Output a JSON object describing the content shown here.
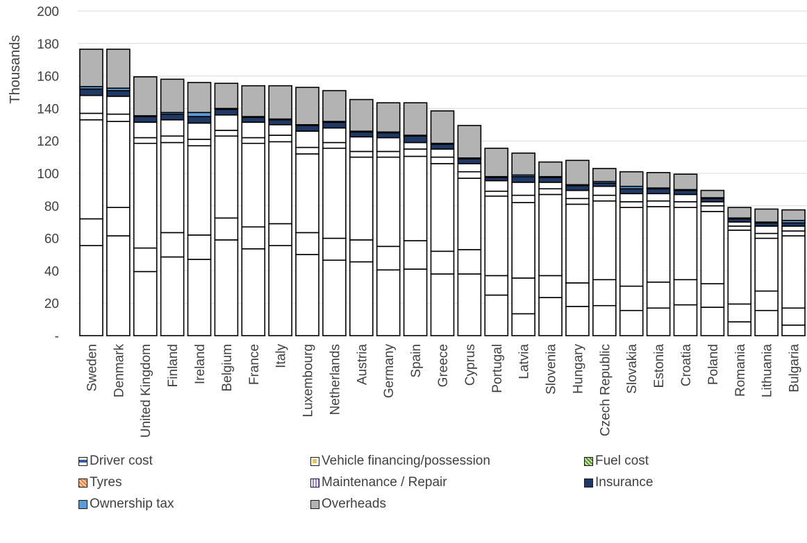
{
  "chart_data": {
    "type": "bar",
    "stacked": true,
    "ylabel": "Thousands",
    "ylim": [
      0,
      200
    ],
    "yticks": [
      {
        "value": 0,
        "label": "-"
      },
      {
        "value": 20,
        "label": "20"
      },
      {
        "value": 40,
        "label": "40"
      },
      {
        "value": 60,
        "label": "60"
      },
      {
        "value": 80,
        "label": "80"
      },
      {
        "value": 100,
        "label": "100"
      },
      {
        "value": 120,
        "label": "120"
      },
      {
        "value": 140,
        "label": "140"
      },
      {
        "value": 160,
        "label": "160"
      },
      {
        "value": 180,
        "label": "180"
      },
      {
        "value": 200,
        "label": "200"
      }
    ],
    "grid": true,
    "legend_position": "bottom",
    "categories": [
      "Sweden",
      "Denmark",
      "United Kingdom",
      "Finland",
      "Ireland",
      "Belgium",
      "France",
      "Italy",
      "Luxembourg",
      "Netherlands",
      "Austria",
      "Germany",
      "Spain",
      "Greece",
      "Cyprus",
      "Portugal",
      "Latvia",
      "Slovenia",
      "Hungary",
      "Czech Republic",
      "Slovakia",
      "Estonia",
      "Croatia",
      "Poland",
      "Romania",
      "Lithuania",
      "Bulgaria"
    ],
    "series": [
      {
        "name": "Driver cost",
        "color": "#ffffff",
        "values": [
          55.5,
          61.5,
          39.5,
          48.5,
          47,
          59,
          53.5,
          55.5,
          50,
          46.5,
          45.5,
          40.5,
          41,
          38,
          38,
          25,
          13.5,
          23.5,
          18,
          18.5,
          15.5,
          17,
          19,
          17.5,
          8.5,
          15.5,
          6.5
        ]
      },
      {
        "name": "Vehicle financing/possession",
        "color": "#ffffff",
        "values": [
          16.5,
          17.5,
          14.5,
          15,
          15,
          13.5,
          13.5,
          13.5,
          13.5,
          13.5,
          13.5,
          14.5,
          17.5,
          14,
          15,
          12,
          22,
          13.5,
          14.5,
          16,
          15,
          16,
          15.5,
          14.5,
          11,
          12,
          10.5
        ]
      },
      {
        "name": "Fuel cost",
        "color": "#ffffff",
        "values": [
          61,
          53,
          64.5,
          55.5,
          55,
          50.5,
          51.5,
          50.5,
          48.5,
          55.5,
          51,
          55,
          52,
          54,
          44,
          49,
          46.5,
          50,
          48.5,
          48.5,
          48.5,
          46.5,
          44.5,
          44.5,
          45.5,
          32.5,
          44.5
        ]
      },
      {
        "name": "Tyres",
        "color": "#ffffff",
        "values": [
          4,
          4.5,
          3.5,
          4,
          4,
          3.5,
          3.5,
          4,
          4,
          3.5,
          3.5,
          3.5,
          4.5,
          4,
          4,
          3,
          4.5,
          3.5,
          3.5,
          3.5,
          3.5,
          3.5,
          3.5,
          3.5,
          2.5,
          3,
          3
        ]
      },
      {
        "name": "Maintenance / Repair",
        "color": "#ffffff",
        "values": [
          11,
          11,
          9.5,
          10,
          10,
          9.5,
          9.5,
          6.5,
          10,
          9,
          9,
          8.5,
          4,
          5,
          5,
          6.5,
          8,
          4,
          5,
          5.5,
          5,
          4.5,
          4.5,
          2.5,
          2.5,
          4.5,
          3
        ]
      },
      {
        "name": "Insurance",
        "color": "#1f3864",
        "values": [
          4,
          3.5,
          3.5,
          3.5,
          4,
          3.5,
          3,
          3,
          3.5,
          3.5,
          3,
          3,
          4,
          3,
          3,
          2,
          3.5,
          3,
          3,
          2,
          3,
          3,
          2.5,
          2,
          2,
          2,
          2
        ]
      },
      {
        "name": "Ownership tax",
        "color": "#5b9bd5",
        "values": [
          1.5,
          1.5,
          0.5,
          1,
          2.5,
          0.5,
          0.5,
          0.5,
          0.5,
          0.5,
          0.5,
          0.5,
          0.5,
          0.5,
          0.5,
          0.5,
          1,
          0.5,
          0.5,
          1,
          1.5,
          0.5,
          0.5,
          0.5,
          0.5,
          0.5,
          1.5
        ]
      },
      {
        "name": "Overheads",
        "color": "#b3b3b3",
        "values": [
          23,
          24,
          24,
          20.5,
          18.5,
          15.5,
          19,
          20.5,
          23,
          19,
          19.5,
          18,
          20,
          20,
          20,
          17.5,
          13.5,
          9,
          15,
          8,
          9,
          9.5,
          9.5,
          4.5,
          6.5,
          8,
          6.5
        ]
      }
    ]
  },
  "legend": [
    {
      "label": "Driver cost",
      "swatch": "driver-swatch"
    },
    {
      "label": "Vehicle financing/possession",
      "swatch": "financing-swatch"
    },
    {
      "label": "Fuel cost",
      "swatch": "fuel-swatch"
    },
    {
      "label": "Tyres",
      "swatch": "tyres-swatch"
    },
    {
      "label": "Maintenance / Repair",
      "swatch": "maintenance-swatch"
    },
    {
      "label": "Insurance",
      "swatch": "insurance-swatch"
    },
    {
      "label": "Ownership tax",
      "swatch": "ownership-swatch"
    },
    {
      "label": "Overheads",
      "swatch": "overheads-swatch"
    }
  ]
}
